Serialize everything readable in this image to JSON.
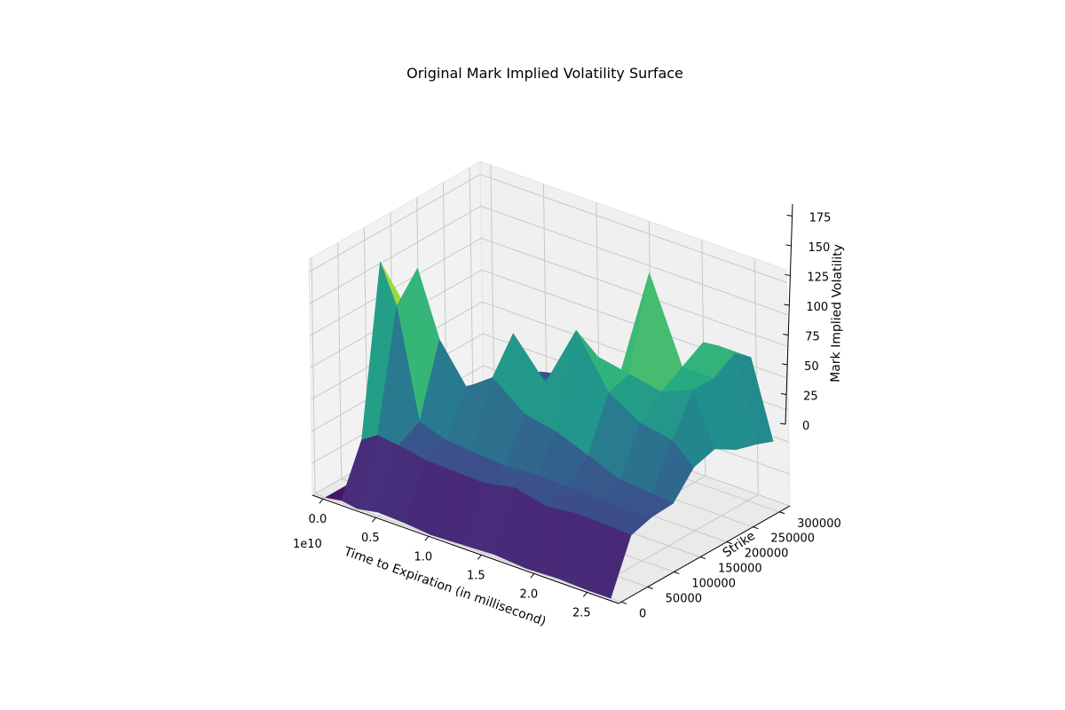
{
  "chart_data": {
    "type": "surface",
    "title": "Original Mark Implied Volatility Surface",
    "xlabel": "Time to Expiration (in millisecond)",
    "ylabel": "Strike",
    "zlabel": "Mark Implied Volatility",
    "x_offset_label": "1e10",
    "colormap": "viridis",
    "xlim": [
      -0.1,
      2.8
    ],
    "ylim": [
      -5000,
      320000
    ],
    "zlim": [
      0,
      185
    ],
    "x_ticks": [
      0.0,
      0.5,
      1.0,
      1.5,
      2.0,
      2.5
    ],
    "x_tick_labels": [
      "0.0",
      "0.5",
      "1.0",
      "1.5",
      "2.0",
      "2.5"
    ],
    "y_ticks": [
      0,
      50000,
      100000,
      150000,
      200000,
      250000,
      300000
    ],
    "y_tick_labels": [
      "0",
      "50000",
      "100000",
      "150000",
      "200000",
      "250000",
      "300000"
    ],
    "z_ticks": [
      0,
      25,
      50,
      75,
      100,
      125,
      150,
      175
    ],
    "z_tick_labels": [
      "0",
      "25",
      "50",
      "75",
      "100",
      "125",
      "150",
      "175"
    ],
    "surface_x": [
      0.0,
      0.15,
      0.3,
      0.5,
      0.75,
      1.0,
      1.3,
      1.6,
      1.9,
      2.2,
      2.5,
      2.7
    ],
    "surface_y": [
      0,
      40000,
      80000,
      120000,
      160000,
      200000,
      240000,
      280000,
      310000
    ],
    "surface_z": [
      [
        0,
        2,
        0,
        3,
        2,
        0,
        1,
        2,
        0,
        1,
        0,
        0
      ],
      [
        0,
        40,
        48,
        46,
        42,
        41,
        40,
        45,
        39,
        42,
        41,
        40
      ],
      [
        0,
        170,
        140,
        55,
        48,
        46,
        44,
        46,
        45,
        44,
        43,
        45
      ],
      [
        0,
        130,
        160,
        110,
        80,
        95,
        75,
        70,
        60,
        50,
        48,
        46
      ],
      [
        0,
        80,
        50,
        60,
        70,
        120,
        90,
        140,
        100,
        85,
        80,
        65
      ],
      [
        0,
        40,
        45,
        50,
        60,
        75,
        80,
        110,
        105,
        100,
        110,
        70
      ],
      [
        0,
        35,
        40,
        48,
        55,
        65,
        70,
        85,
        175,
        110,
        110,
        60
      ],
      [
        0,
        30,
        35,
        45,
        50,
        60,
        65,
        70,
        75,
        120,
        120,
        55
      ],
      [
        0,
        25,
        30,
        40,
        45,
        50,
        55,
        60,
        65,
        110,
        110,
        50
      ]
    ]
  }
}
